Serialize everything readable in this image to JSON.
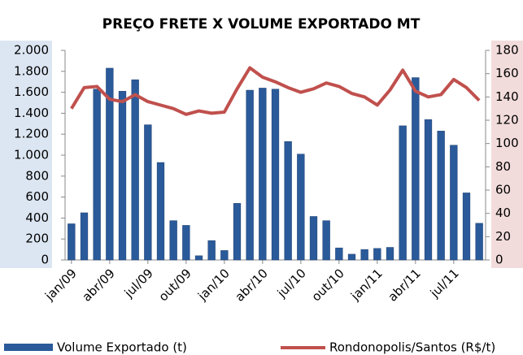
{
  "chart_data": {
    "type": "bar_line",
    "title": "PREÇO FRETE X VOLUME EXPORTADO MT",
    "categories": [
      "jan/09",
      null,
      null,
      "abr/09",
      null,
      null,
      "jul/09",
      null,
      null,
      "out/09",
      null,
      null,
      "jan/10",
      null,
      null,
      "abr/10",
      null,
      null,
      "jul/10",
      null,
      null,
      "out/10",
      null,
      null,
      "jan/11",
      null,
      null,
      "abr/11",
      null,
      null,
      "jul/11",
      null,
      null
    ],
    "series": [
      {
        "name": "Volume Exportado (t)",
        "type": "bar",
        "color": "#2a5a9a",
        "values": [
          345,
          450,
          1630,
          1830,
          1610,
          1720,
          1290,
          930,
          375,
          330,
          40,
          185,
          90,
          540,
          1620,
          1640,
          1630,
          1130,
          1010,
          415,
          375,
          115,
          55,
          100,
          110,
          120,
          1280,
          1740,
          1340,
          1230,
          1095,
          640,
          350
        ]
      },
      {
        "name": "Rondonopolis/Santos (R$/t)",
        "type": "line",
        "axis": "y2",
        "color": "#c0504d",
        "values": [
          130,
          148,
          149,
          138,
          136,
          142,
          136,
          133,
          130,
          125,
          128,
          126,
          127,
          147,
          165,
          157,
          153,
          148,
          144,
          147,
          152,
          149,
          143,
          140,
          133,
          146,
          163,
          145,
          140,
          142,
          155,
          148,
          137
        ]
      }
    ],
    "ylim": [
      0,
      2000
    ],
    "yticks": [
      0,
      200,
      400,
      600,
      800,
      {
        "value": 1000,
        "label": "1.000"
      },
      {
        "value": 1200,
        "label": "1.200"
      },
      {
        "value": 1400,
        "label": "1.400"
      },
      {
        "value": 1600,
        "label": "1.600"
      },
      {
        "value": 1800,
        "label": "1.800"
      },
      {
        "value": 2000,
        "label": "2.000"
      }
    ],
    "y2lim": [
      0,
      180
    ],
    "y2ticks": [
      0,
      20,
      40,
      60,
      80,
      100,
      120,
      140,
      160,
      180
    ]
  }
}
